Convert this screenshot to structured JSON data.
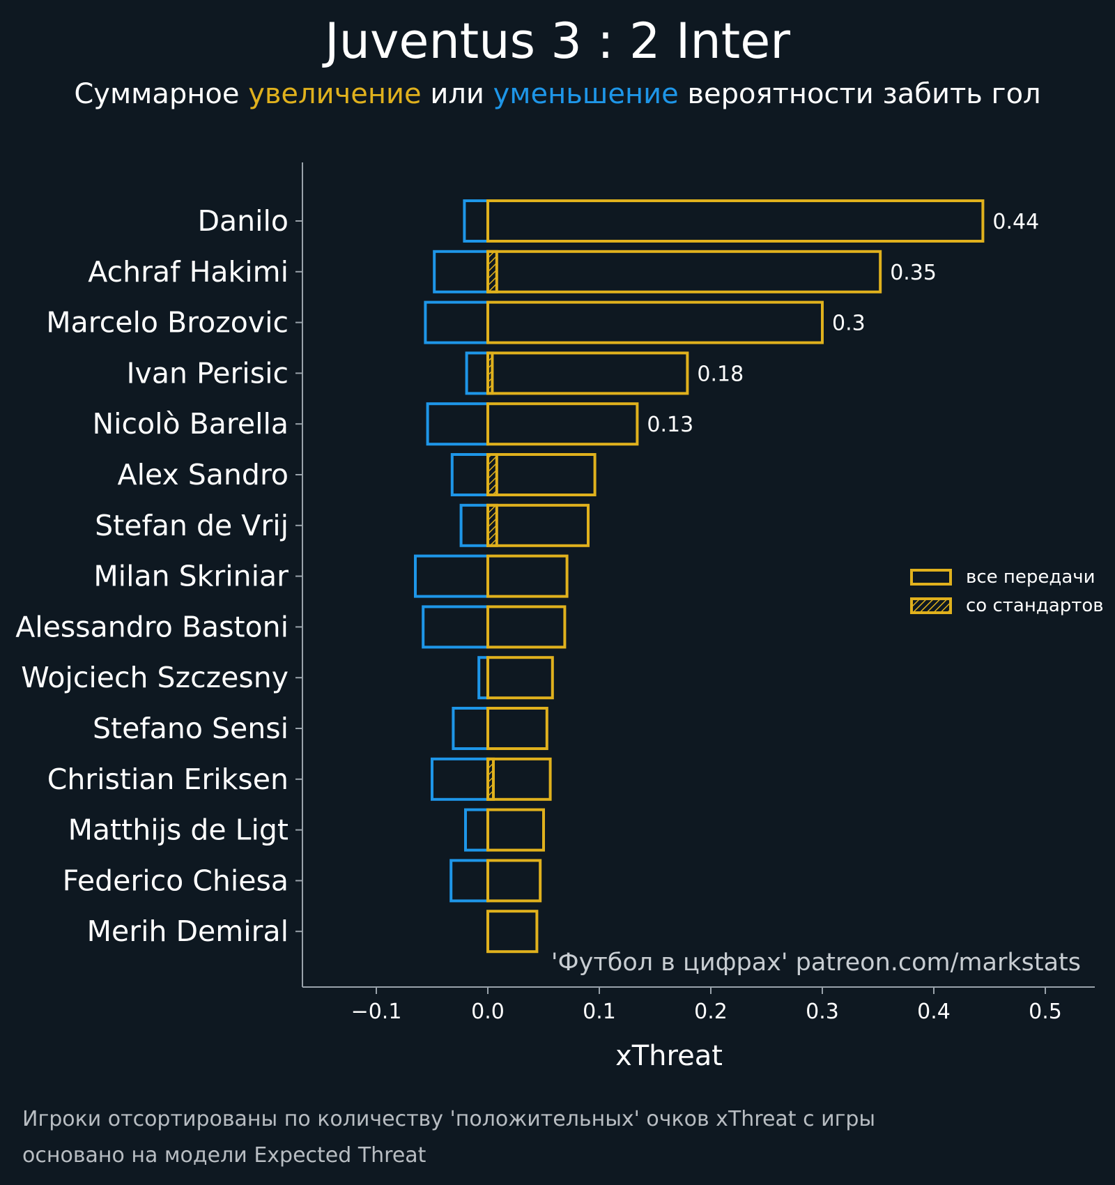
{
  "title": "Juventus 3 : 2 Inter",
  "subtitle": {
    "part1": "Суммарное ",
    "increase": "увеличение",
    "part2": " или ",
    "decrease": "уменьшение",
    "part3": " вероятности забить гол"
  },
  "footnote": {
    "line1": "Игроки отсортированы по количеству 'положительных' очков xThreat с игры",
    "line2": "основано на модели Expected Threat"
  },
  "colors": {
    "background": "#0e1821",
    "positive": "#e0b11d",
    "negative": "#1e96e8",
    "axis": "#9aa3ab",
    "text": "#ffffff",
    "muted": "#c8cdd2"
  },
  "chart_data": {
    "type": "bar",
    "orientation": "horizontal",
    "xlabel": "xThreat",
    "ylabel": "",
    "xlim": [
      -0.17,
      0.545
    ],
    "x_ticks": [
      -0.1,
      0.0,
      0.1,
      0.2,
      0.3,
      0.4,
      0.5
    ],
    "x_tick_labels": [
      "−0.1",
      "0.0",
      "0.1",
      "0.2",
      "0.3",
      "0.4",
      "0.5"
    ],
    "grid": false,
    "legend_position": "right",
    "legend": [
      {
        "label": "все передачи",
        "style": "outline"
      },
      {
        "label": "со стандартов",
        "style": "hatched"
      }
    ],
    "watermark": "'Футбол в цифрах' patreon.com/markstats",
    "categories": [
      "Danilo",
      "Achraf Hakimi",
      "Marcelo Brozovic",
      "Ivan Perisic",
      "Nicolò Barella",
      "Alex Sandro",
      "Stefan de Vrij",
      "Milan Skriniar",
      "Alessandro Bastoni",
      "Wojciech Szczesny",
      "Stefano Sensi",
      "Christian Eriksen",
      "Matthijs de Ligt",
      "Federico Chiesa",
      "Merih Demiral"
    ],
    "series": [
      {
        "name": "все передачи",
        "values": [
          0.444,
          0.352,
          0.3,
          0.179,
          0.134,
          0.096,
          0.09,
          0.071,
          0.069,
          0.058,
          0.053,
          0.056,
          0.05,
          0.047,
          0.044
        ]
      },
      {
        "name": "со стандартов",
        "values": [
          0,
          0.008,
          0,
          0.004,
          0,
          0.008,
          0.008,
          0,
          0,
          0,
          0,
          0.005,
          0,
          0,
          0
        ]
      },
      {
        "values": [
          -0.021,
          -0.048,
          -0.056,
          -0.019,
          -0.054,
          -0.032,
          -0.024,
          -0.065,
          -0.058,
          -0.008,
          -0.031,
          -0.05,
          -0.02,
          -0.033,
          0
        ]
      }
    ],
    "data_labels": [
      "0.44",
      "0.35",
      "0.3",
      "0.18",
      "0.13",
      "",
      "",
      "",
      "",
      "",
      "",
      "",
      "",
      "",
      ""
    ]
  }
}
